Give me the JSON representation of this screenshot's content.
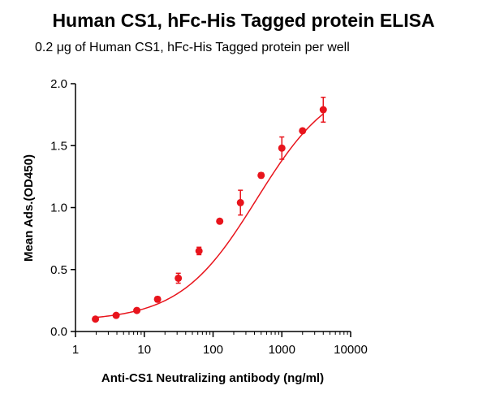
{
  "chart_data": {
    "type": "scatter",
    "title": "Human CS1, hFc-His Tagged protein ELISA",
    "subtitle": "0.2 μg of Human CS1, hFc-His Tagged protein per well",
    "xlabel": "Anti-CS1 Neutralizing antibody (ng/ml)",
    "ylabel": "Mean Ads.(OD450)",
    "x_scale": "log",
    "xlim": [
      1,
      10000
    ],
    "ylim": [
      0,
      2.0
    ],
    "x_ticks": [
      "1",
      "10",
      "100",
      "1000",
      "10000"
    ],
    "y_ticks": [
      "0.0",
      "0.5",
      "1.0",
      "1.5",
      "2.0"
    ],
    "grid": false,
    "marker_color": "#e8141c",
    "series": [
      {
        "x": [
          1.95,
          3.9,
          7.8,
          15.6,
          31.25,
          62.5,
          125,
          250,
          500,
          1000,
          2000,
          4000
        ],
        "y": [
          0.1,
          0.13,
          0.17,
          0.26,
          0.43,
          0.65,
          0.89,
          1.04,
          1.26,
          1.48,
          1.62,
          1.79
        ],
        "error": [
          0.01,
          0.01,
          0.01,
          0.02,
          0.04,
          0.03,
          0.01,
          0.1,
          0.02,
          0.09,
          0.01,
          0.1
        ],
        "fit": "4PL"
      }
    ]
  }
}
